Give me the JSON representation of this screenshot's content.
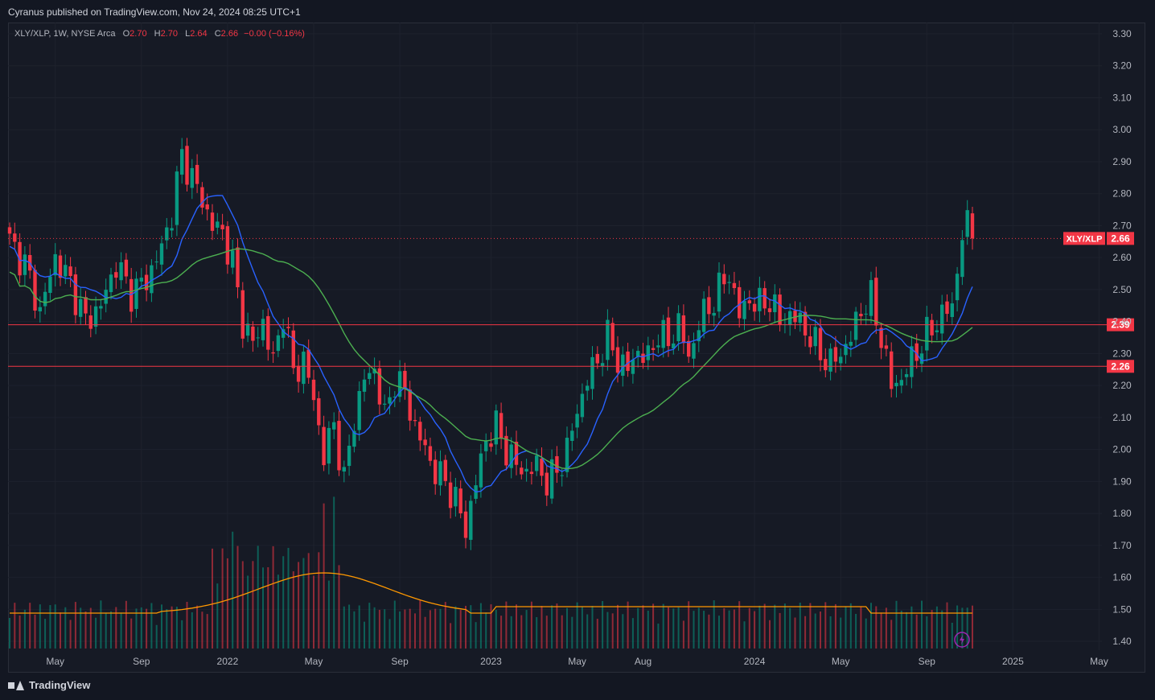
{
  "header": {
    "published": "Cyranus published on TradingView.com, Nov 24, 2024 08:25 UTC+1"
  },
  "legend": {
    "symbol": "XLY/XLP, 1W, NYSE Arca",
    "o_label": "O",
    "o_value": "2.70",
    "h_label": "H",
    "h_value": "2.70",
    "l_label": "L",
    "l_value": "2.64",
    "c_label": "C",
    "c_value": "2.66",
    "change": "−0.00 (−0.16%)"
  },
  "footer": {
    "brand": "TradingView"
  },
  "colors": {
    "up": "#089981",
    "down": "#f23645",
    "ma_fast": "#2962ff",
    "ma_slow": "#4caf50",
    "volume_ma": "#ff9800",
    "level": "#f23645",
    "grid": "#1e222d"
  },
  "chart_data": {
    "type": "candlestick",
    "symbol": "XLY/XLP",
    "interval": "1W",
    "ylim": [
      1.35,
      3.35
    ],
    "y_ticks": [
      "3.30",
      "3.20",
      "3.10",
      "3.00",
      "2.90",
      "2.80",
      "2.70",
      "2.60",
      "2.50",
      "2.40",
      "2.30",
      "2.20",
      "2.10",
      "2.00",
      "1.90",
      "1.80",
      "1.70",
      "1.60",
      "1.50",
      "1.40"
    ],
    "x_ticks": [
      {
        "label": "May",
        "week": 9
      },
      {
        "label": "Sep",
        "week": 26
      },
      {
        "label": "2022",
        "week": 43
      },
      {
        "label": "May",
        "week": 60
      },
      {
        "label": "Sep",
        "week": 77
      },
      {
        "label": "2023",
        "week": 95
      },
      {
        "label": "May",
        "week": 112
      },
      {
        "label": "Aug",
        "week": 125
      },
      {
        "label": "2024",
        "week": 147
      },
      {
        "label": "May",
        "week": 164
      },
      {
        "label": "Sep",
        "week": 181
      },
      {
        "label": "2025",
        "week": 198
      },
      {
        "label": "May",
        "week": 215
      }
    ],
    "levels": [
      {
        "label": "2.39",
        "value": 2.39
      },
      {
        "label": "2.26",
        "value": 2.26
      }
    ],
    "last_price": {
      "name": "XLY/XLP",
      "label": "2.66",
      "value": 2.66
    },
    "close_anchors": [
      [
        0,
        2.65
      ],
      [
        3,
        2.58
      ],
      [
        6,
        2.43
      ],
      [
        9,
        2.6
      ],
      [
        12,
        2.52
      ],
      [
        15,
        2.4
      ],
      [
        18,
        2.45
      ],
      [
        21,
        2.58
      ],
      [
        24,
        2.49
      ],
      [
        27,
        2.53
      ],
      [
        30,
        2.63
      ],
      [
        32,
        2.74
      ],
      [
        34,
        2.92
      ],
      [
        36,
        2.85
      ],
      [
        38,
        2.78
      ],
      [
        40,
        2.7
      ],
      [
        42,
        2.68
      ],
      [
        44,
        2.58
      ],
      [
        46,
        2.4
      ],
      [
        48,
        2.33
      ],
      [
        50,
        2.4
      ],
      [
        52,
        2.27
      ],
      [
        54,
        2.43
      ],
      [
        56,
        2.24
      ],
      [
        58,
        2.28
      ],
      [
        60,
        2.16
      ],
      [
        62,
        1.98
      ],
      [
        64,
        2.08
      ],
      [
        66,
        1.9
      ],
      [
        68,
        2.1
      ],
      [
        70,
        2.22
      ],
      [
        72,
        2.25
      ],
      [
        74,
        2.1
      ],
      [
        76,
        2.22
      ],
      [
        78,
        2.18
      ],
      [
        80,
        2.07
      ],
      [
        82,
        2.0
      ],
      [
        84,
        1.93
      ],
      [
        86,
        1.9
      ],
      [
        88,
        1.84
      ],
      [
        90,
        1.75
      ],
      [
        92,
        1.9
      ],
      [
        94,
        2.03
      ],
      [
        96,
        2.07
      ],
      [
        98,
        2.0
      ],
      [
        100,
        1.95
      ],
      [
        102,
        1.93
      ],
      [
        104,
        1.95
      ],
      [
        106,
        1.9
      ],
      [
        108,
        1.93
      ],
      [
        110,
        2.0
      ],
      [
        112,
        2.12
      ],
      [
        114,
        2.22
      ],
      [
        116,
        2.28
      ],
      [
        118,
        2.35
      ],
      [
        120,
        2.28
      ],
      [
        122,
        2.25
      ],
      [
        124,
        2.31
      ],
      [
        126,
        2.28
      ],
      [
        128,
        2.37
      ],
      [
        130,
        2.33
      ],
      [
        132,
        2.4
      ],
      [
        134,
        2.28
      ],
      [
        136,
        2.4
      ],
      [
        138,
        2.44
      ],
      [
        140,
        2.5
      ],
      [
        142,
        2.55
      ],
      [
        144,
        2.42
      ],
      [
        146,
        2.47
      ],
      [
        148,
        2.45
      ],
      [
        150,
        2.47
      ],
      [
        152,
        2.4
      ],
      [
        154,
        2.42
      ],
      [
        156,
        2.4
      ],
      [
        158,
        2.35
      ],
      [
        160,
        2.3
      ],
      [
        162,
        2.27
      ],
      [
        164,
        2.3
      ],
      [
        166,
        2.35
      ],
      [
        168,
        2.44
      ],
      [
        170,
        2.47
      ],
      [
        172,
        2.35
      ],
      [
        174,
        2.2
      ],
      [
        176,
        2.22
      ],
      [
        178,
        2.28
      ],
      [
        180,
        2.33
      ],
      [
        182,
        2.38
      ],
      [
        184,
        2.42
      ],
      [
        186,
        2.45
      ],
      [
        188,
        2.67
      ],
      [
        189,
        2.7
      ],
      [
        190,
        2.66
      ]
    ],
    "volume_axis_max": 100
  }
}
